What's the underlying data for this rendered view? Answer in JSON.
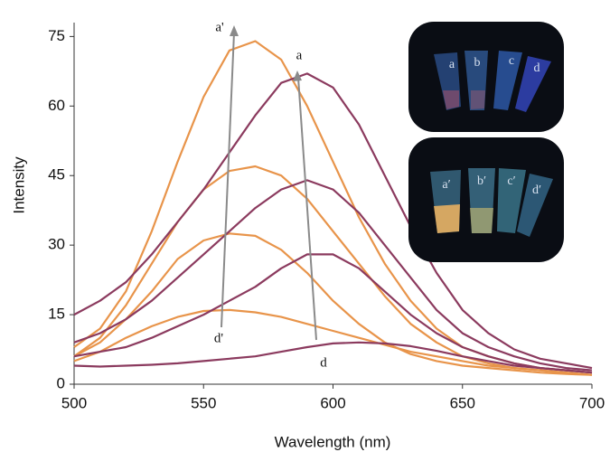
{
  "chart_data": {
    "type": "line",
    "xlabel": "Wavelength (nm)",
    "ylabel": "Intensity",
    "x": [
      500,
      510,
      520,
      530,
      540,
      550,
      560,
      570,
      580,
      590,
      600,
      610,
      620,
      630,
      640,
      650,
      660,
      670,
      680,
      690,
      700
    ],
    "xlim": [
      500,
      700
    ],
    "ylim": [
      0,
      78
    ],
    "xticks": [
      500,
      550,
      600,
      650,
      700
    ],
    "yticks": [
      0,
      15,
      30,
      45,
      60,
      75
    ],
    "series": [
      {
        "color": "#e8944a",
        "values": [
          8,
          12,
          20,
          33,
          48,
          62,
          72,
          74,
          70,
          60,
          48,
          36,
          26,
          18,
          12,
          8,
          6,
          4.5,
          3.5,
          3,
          2.5
        ]
      },
      {
        "color": "#e8944a",
        "values": [
          6,
          10,
          17,
          26,
          35,
          42,
          46,
          47,
          45,
          40,
          33,
          26,
          19,
          13,
          9,
          6,
          4.5,
          3.5,
          3,
          2.5,
          2
        ]
      },
      {
        "color": "#e8944a",
        "values": [
          6,
          9,
          14,
          20,
          27,
          31,
          32.5,
          32,
          29,
          24,
          18,
          13,
          9,
          6.5,
          5,
          4,
          3.5,
          3,
          2.5,
          2.2,
          2
        ]
      },
      {
        "color": "#e8944a",
        "values": [
          5,
          7,
          10,
          12.5,
          14.5,
          15.8,
          16,
          15.5,
          14.5,
          13,
          11.5,
          10,
          8.5,
          7,
          6,
          5,
          4,
          3.5,
          3,
          2.5,
          2
        ]
      },
      {
        "color": "#8b3a5e",
        "values": [
          15,
          18,
          22,
          28,
          35,
          42,
          50,
          58,
          65,
          67,
          64,
          56,
          45,
          34,
          24,
          16,
          11,
          7.5,
          5.5,
          4.5,
          3.5
        ]
      },
      {
        "color": "#8b3a5e",
        "values": [
          9,
          11,
          14,
          18,
          23,
          28,
          33,
          38,
          42,
          44,
          42,
          37,
          30,
          23,
          16,
          11,
          8,
          6,
          4.5,
          3.5,
          3
        ]
      },
      {
        "color": "#8b3a5e",
        "values": [
          6,
          7,
          8,
          10,
          12.5,
          15,
          18,
          21,
          25,
          28,
          28,
          25,
          20,
          15,
          11,
          8,
          6,
          4.5,
          3.5,
          3,
          2.5
        ]
      },
      {
        "color": "#8b3a5e",
        "values": [
          4,
          3.8,
          4,
          4.2,
          4.5,
          5,
          5.5,
          6,
          7,
          8,
          8.8,
          9,
          8.8,
          8.2,
          7.2,
          6,
          5,
          4,
          3.5,
          3,
          2.5
        ]
      }
    ],
    "annotations": [
      "a'",
      "a",
      "d'",
      "d"
    ]
  },
  "inset": {
    "top_labels": [
      "a",
      "b",
      "c",
      "d"
    ],
    "bottom_labels": [
      "a′",
      "b′",
      "c′",
      "d′"
    ]
  }
}
